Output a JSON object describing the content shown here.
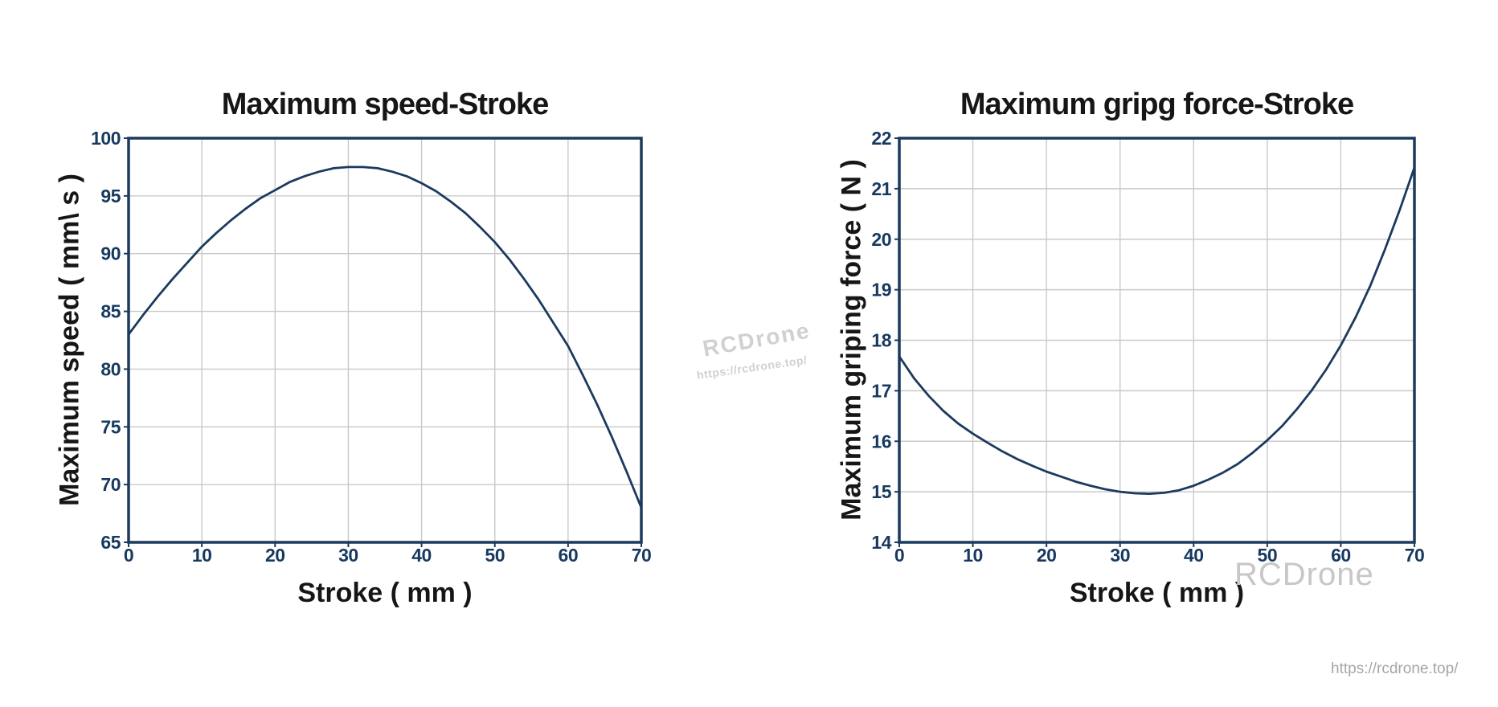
{
  "colors": {
    "bg": "#ffffff",
    "text": "#161616",
    "navy": "#1b3a5e",
    "tick": "#17395f",
    "grid": "#c9c9c9",
    "wm_light": "#d0d0d0",
    "wm_mid": "#c7c7c7",
    "wm_url": "#a6a6a6"
  },
  "watermarks": {
    "center_brand": "RCDrone",
    "center_url": "https://rcdrone.top/",
    "right_brand": "RCDrone",
    "corner_url": "https://rcdrone.top/"
  },
  "chart_data": [
    {
      "type": "line",
      "title": "Maximum speed-Stroke",
      "xlabel": "Stroke ( mm )",
      "ylabel": "Maximum speed ( mm\\ s )",
      "xlim": [
        0,
        70
      ],
      "ylim": [
        65,
        100
      ],
      "x_ticks": [
        0,
        10,
        20,
        30,
        40,
        50,
        60,
        70
      ],
      "y_ticks": [
        65,
        70,
        75,
        80,
        85,
        90,
        95,
        100
      ],
      "grid": true,
      "legend": "none",
      "x": [
        0,
        2,
        4,
        6,
        8,
        10,
        12,
        14,
        16,
        18,
        20,
        22,
        24,
        26,
        28,
        30,
        32,
        34,
        36,
        38,
        40,
        42,
        44,
        46,
        48,
        50,
        52,
        54,
        56,
        58,
        60,
        62,
        64,
        66,
        68,
        70
      ],
      "y": [
        83.0,
        84.7,
        86.3,
        87.8,
        89.2,
        90.6,
        91.8,
        92.9,
        93.9,
        94.8,
        95.5,
        96.2,
        96.7,
        97.1,
        97.4,
        97.5,
        97.5,
        97.4,
        97.1,
        96.7,
        96.1,
        95.4,
        94.5,
        93.5,
        92.3,
        91.0,
        89.5,
        87.8,
        86.0,
        84.0,
        82.0,
        79.5,
        76.9,
        74.1,
        71.1,
        68.0
      ]
    },
    {
      "type": "line",
      "title": "Maximum gripg force-Stroke",
      "xlabel": "Stroke ( mm )",
      "ylabel": "Maximum griping force ( N )",
      "xlim": [
        0,
        70
      ],
      "ylim": [
        14,
        22
      ],
      "x_ticks": [
        0,
        10,
        20,
        30,
        40,
        50,
        60,
        70
      ],
      "y_ticks": [
        14,
        15,
        16,
        17,
        18,
        19,
        20,
        21,
        22
      ],
      "grid": true,
      "legend": "none",
      "x": [
        0,
        2,
        4,
        6,
        8,
        10,
        12,
        14,
        16,
        18,
        20,
        22,
        24,
        26,
        28,
        30,
        32,
        34,
        36,
        38,
        40,
        42,
        44,
        46,
        48,
        50,
        52,
        54,
        56,
        58,
        60,
        62,
        64,
        66,
        68,
        70
      ],
      "y": [
        17.68,
        17.25,
        16.9,
        16.6,
        16.35,
        16.15,
        15.97,
        15.8,
        15.65,
        15.52,
        15.4,
        15.3,
        15.2,
        15.12,
        15.05,
        15.0,
        14.97,
        14.96,
        14.98,
        15.03,
        15.12,
        15.24,
        15.38,
        15.55,
        15.77,
        16.02,
        16.3,
        16.63,
        17.0,
        17.42,
        17.9,
        18.45,
        19.08,
        19.8,
        20.58,
        21.42
      ]
    }
  ]
}
